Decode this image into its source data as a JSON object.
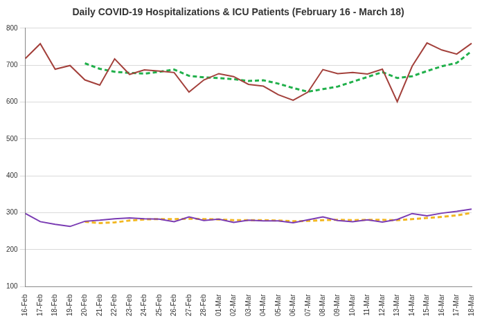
{
  "chart_data": {
    "type": "line",
    "title": "Daily COVID-19 Hospitalizations & ICU Patients (February 16 - March 18)",
    "categories": [
      "16-Feb",
      "17-Feb",
      "18-Feb",
      "19-Feb",
      "20-Feb",
      "21-Feb",
      "22-Feb",
      "23-Feb",
      "24-Feb",
      "25-Feb",
      "26-Feb",
      "27-Feb",
      "28-Feb",
      "01-Mar",
      "02-Mar",
      "03-Mar",
      "04-Mar",
      "05-Mar",
      "06-Mar",
      "07-Mar",
      "08-Mar",
      "09-Mar",
      "10-Mar",
      "11-Mar",
      "12-Mar",
      "13-Mar",
      "14-Mar",
      "15-Mar",
      "16-Mar",
      "17-Mar",
      "18-Mar"
    ],
    "series": [
      {
        "color": "#a3403b",
        "line_style": "solid",
        "values": [
          718,
          758,
          689,
          699,
          660,
          646,
          717,
          675,
          687,
          684,
          680,
          627,
          660,
          677,
          669,
          648,
          643,
          620,
          605,
          627,
          688,
          677,
          680,
          676,
          689,
          601,
          697,
          760,
          741,
          730,
          759
        ]
      },
      {
        "color": "#21b04b",
        "line_style": "dashed",
        "values": [
          null,
          null,
          null,
          null,
          705,
          690,
          682,
          679,
          677,
          682,
          688,
          671,
          667,
          665,
          662,
          657,
          659,
          650,
          638,
          628,
          635,
          642,
          655,
          668,
          681,
          665,
          670,
          684,
          697,
          706,
          738
        ]
      },
      {
        "color": "#7a3bb3",
        "line_style": "solid",
        "values": [
          298,
          276,
          269,
          263,
          277,
          280,
          284,
          286,
          284,
          283,
          276,
          289,
          279,
          283,
          274,
          280,
          278,
          278,
          273,
          281,
          289,
          279,
          276,
          281,
          275,
          282,
          298,
          292,
          299,
          304,
          310
        ]
      },
      {
        "color": "#f2b722",
        "line_style": "dashed",
        "values": [
          null,
          null,
          null,
          null,
          276,
          272,
          274,
          279,
          282,
          283,
          283,
          284,
          283,
          282,
          280,
          280,
          280,
          279,
          277,
          278,
          280,
          281,
          280,
          281,
          281,
          280,
          283,
          286,
          289,
          293,
          300
        ]
      }
    ],
    "ylim": [
      100,
      800
    ],
    "yticks": [
      100,
      200,
      300,
      400,
      500,
      600,
      700,
      800
    ],
    "grid": true
  }
}
